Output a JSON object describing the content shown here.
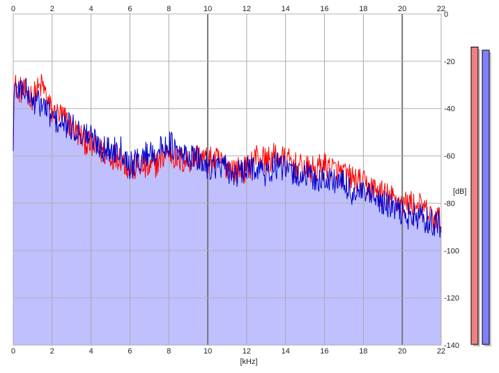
{
  "chart_data": {
    "type": "line",
    "title": "",
    "xlabel": "[kHz]",
    "ylabel": "[dB]",
    "xlim": [
      0,
      22
    ],
    "ylim": [
      -140,
      0
    ],
    "x_ticks": [
      0,
      2,
      4,
      6,
      8,
      10,
      12,
      14,
      16,
      18,
      20,
      22
    ],
    "y_ticks": [
      0,
      -20,
      -40,
      -60,
      -80,
      -100,
      -120,
      -140
    ],
    "y_tick_labels": [
      "0",
      "-20",
      "-40",
      "-60",
      "-80",
      "-100",
      "-120",
      "-140"
    ],
    "grid": true,
    "x": [
      0,
      0.5,
      1,
      1.5,
      2,
      2.5,
      3,
      3.5,
      4,
      4.5,
      5,
      5.5,
      6,
      6.5,
      7,
      7.5,
      8,
      8.5,
      9,
      9.5,
      10,
      10.5,
      11,
      11.5,
      12,
      12.5,
      13,
      13.5,
      14,
      14.5,
      15,
      15.5,
      16,
      16.5,
      17,
      17.5,
      18,
      18.5,
      19,
      19.5,
      20,
      20.5,
      21,
      21.5,
      22
    ],
    "series": [
      {
        "color": "#ff0000",
        "values": [
          -30,
          -33,
          -35,
          -30,
          -42,
          -43,
          -48,
          -52,
          -56,
          -58,
          -60,
          -60,
          -66,
          -64,
          -66,
          -62,
          -58,
          -62,
          -62,
          -60,
          -62,
          -62,
          -64,
          -66,
          -66,
          -60,
          -62,
          -60,
          -62,
          -64,
          -66,
          -66,
          -64,
          -66,
          -68,
          -70,
          -72,
          -74,
          -76,
          -78,
          -80,
          -80,
          -82,
          -86,
          -87
        ]
      },
      {
        "color": "#0000cc",
        "values": [
          -33,
          -31,
          -37,
          -38,
          -44,
          -47,
          -48,
          -50,
          -52,
          -56,
          -58,
          -56,
          -64,
          -62,
          -58,
          -58,
          -54,
          -60,
          -60,
          -62,
          -64,
          -64,
          -66,
          -68,
          -66,
          -64,
          -68,
          -64,
          -66,
          -68,
          -68,
          -70,
          -70,
          -70,
          -72,
          -76,
          -76,
          -78,
          -80,
          -82,
          -84,
          -86,
          -86,
          -88,
          -89
        ]
      }
    ],
    "fill": {
      "color": "#c0c0ff",
      "follows_series": 1
    }
  },
  "level_meters": [
    {
      "color": "#f08080",
      "level": 0.95
    },
    {
      "color": "#8080ff",
      "level": 0.94
    }
  ]
}
